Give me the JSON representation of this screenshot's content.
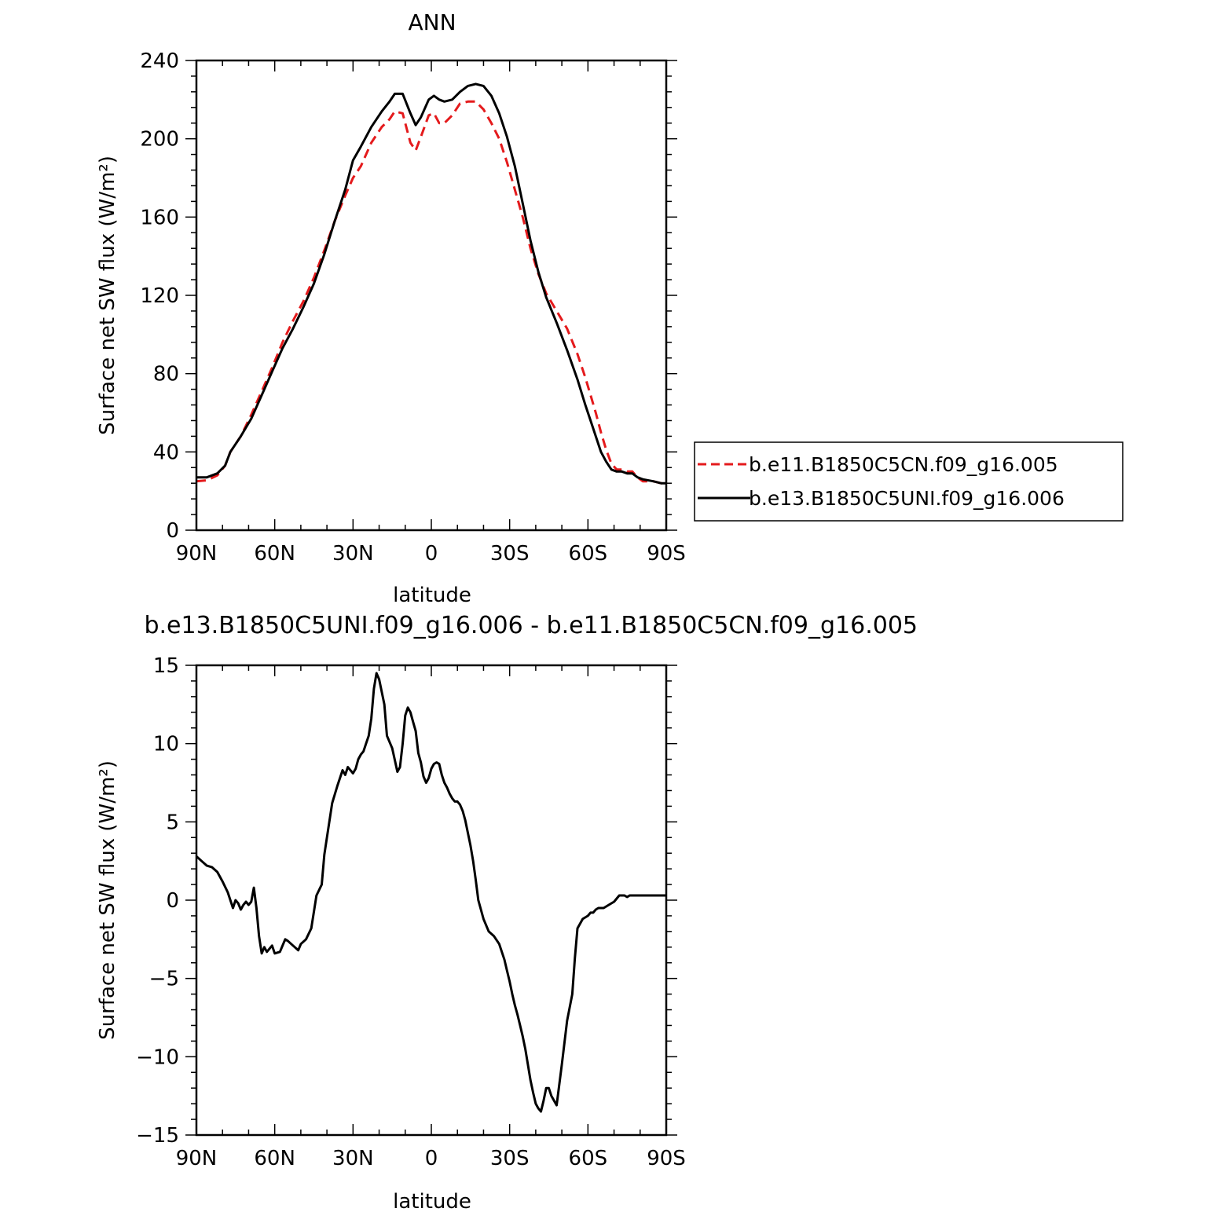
{
  "chart_data": [
    {
      "type": "line",
      "title": "ANN",
      "xlabel": "latitude",
      "ylabel": "Surface net SW flux (W/m²)",
      "xlim": [
        90,
        -90
      ],
      "ylim": [
        0,
        240
      ],
      "xticks": [
        90,
        60,
        30,
        0,
        -30,
        -60,
        -90
      ],
      "xtick_labels": [
        "90N",
        "60N",
        "30N",
        "0",
        "30S",
        "60S",
        "90S"
      ],
      "yticks": [
        0,
        40,
        80,
        120,
        160,
        200,
        240
      ],
      "ytick_labels": [
        "0",
        "40",
        "80",
        "120",
        "160",
        "200",
        "240"
      ],
      "legend_position": "right",
      "series": [
        {
          "name": "b.e11.B1850C5CN.f09_g16.005",
          "color": "#e41a1c",
          "dash": "dashed",
          "x": [
            90,
            86,
            82,
            79,
            77,
            73,
            69,
            65,
            61,
            57,
            53,
            49,
            45,
            41,
            37,
            33,
            30,
            27,
            23,
            19,
            16,
            14,
            11,
            8,
            6,
            4,
            1,
            -1,
            -3,
            -5,
            -8,
            -11,
            -14,
            -17,
            -20,
            -23,
            -26,
            -29,
            -32,
            -35,
            -38,
            -41,
            -44,
            -48,
            -52,
            -56,
            -59,
            -61,
            -63,
            -65,
            -67,
            -69,
            -71,
            -73,
            -75,
            -77,
            -79,
            -81,
            -85,
            -88,
            -90
          ],
          "y": [
            25,
            25.5,
            28,
            33,
            40,
            48,
            59,
            71,
            83,
            96,
            107,
            117,
            129,
            143,
            158,
            171,
            180,
            186,
            198,
            206,
            210,
            214,
            213,
            198,
            194,
            201,
            212,
            213,
            208,
            208,
            212,
            218,
            219,
            219,
            215,
            208,
            200,
            188,
            174,
            160,
            144,
            131,
            121,
            112,
            103,
            90,
            78,
            69,
            60,
            50,
            41,
            34,
            31,
            31,
            30,
            30,
            27,
            25,
            25,
            24,
            25
          ]
        },
        {
          "name": "b.e13.B1850C5UNI.f09_g16.006",
          "color": "#000000",
          "dash": "solid",
          "x": [
            90,
            86,
            82,
            79,
            77,
            73,
            69,
            65,
            61,
            57,
            53,
            49,
            45,
            41,
            37,
            33,
            30,
            27,
            23,
            19,
            16,
            14,
            11,
            8,
            6,
            4,
            1,
            -1,
            -3,
            -5,
            -8,
            -11,
            -14,
            -17,
            -20,
            -23,
            -26,
            -29,
            -32,
            -35,
            -38,
            -41,
            -44,
            -48,
            -52,
            -56,
            -59,
            -61,
            -63,
            -65,
            -67,
            -69,
            -71,
            -73,
            -75,
            -77,
            -79,
            -81,
            -85,
            -88,
            -90
          ],
          "y": [
            27,
            27,
            29,
            33,
            40,
            48,
            57,
            69,
            81,
            93,
            103,
            114,
            126,
            141,
            158,
            174,
            189,
            196,
            206,
            214,
            219,
            223,
            223,
            213,
            207,
            211,
            220,
            222,
            220,
            219,
            220,
            224,
            227,
            228,
            227,
            222,
            213,
            201,
            186,
            167,
            148,
            132,
            119,
            106,
            92,
            77,
            64,
            56,
            48,
            40,
            35,
            31,
            30,
            30,
            29,
            29,
            27,
            26,
            25,
            24,
            24
          ]
        }
      ]
    },
    {
      "type": "line",
      "title": "b.e13.B1850C5UNI.f09_g16.006 - b.e11.B1850C5CN.f09_g16.005",
      "xlabel": "latitude",
      "ylabel": "Surface net SW flux (W/m²)",
      "xlim": [
        90,
        -90
      ],
      "ylim": [
        -15,
        15
      ],
      "xticks": [
        90,
        60,
        30,
        0,
        -30,
        -60,
        -90
      ],
      "xtick_labels": [
        "90N",
        "60N",
        "30N",
        "0",
        "30S",
        "60S",
        "90S"
      ],
      "yticks": [
        -15,
        -10,
        -5,
        0,
        5,
        10,
        15
      ],
      "ytick_labels": [
        "−15",
        "−10",
        "−5",
        "0",
        "5",
        "10",
        "15"
      ],
      "series": [
        {
          "color": "#000000",
          "x": [
            90,
            88,
            86,
            84,
            82,
            80,
            78,
            76,
            75,
            74,
            73,
            72,
            71,
            70,
            69,
            68,
            67,
            66,
            65,
            64,
            63,
            62,
            61,
            60,
            58,
            56,
            55,
            53,
            51,
            50,
            48,
            46,
            44,
            42,
            41,
            40,
            38,
            36,
            34,
            33,
            32,
            31,
            30,
            29,
            28,
            27,
            26,
            25,
            24,
            23,
            22,
            21,
            20,
            18,
            17,
            15,
            13,
            12,
            11,
            10,
            9,
            8,
            7,
            6,
            5,
            4,
            3,
            2,
            1,
            0,
            -1,
            -2,
            -3,
            -4,
            -5,
            -6,
            -7,
            -8,
            -9,
            -10,
            -11,
            -12,
            -13,
            -14,
            -15,
            -16,
            -17,
            -18,
            -20,
            -22,
            -24,
            -26,
            -28,
            -29,
            -30,
            -31,
            -32,
            -33,
            -34,
            -35,
            -36,
            -37,
            -38,
            -39,
            -40,
            -41,
            -42,
            -43,
            -44,
            -45,
            -46,
            -48,
            -50,
            -52,
            -54,
            -55,
            -56,
            -58,
            -59,
            -60,
            -61,
            -62,
            -63,
            -64,
            -65,
            -66,
            -67,
            -68,
            -69,
            -70,
            -71,
            -72,
            -73,
            -74,
            -75,
            -76,
            -77,
            -78,
            -80,
            -82,
            -84,
            -86,
            -88,
            -90
          ],
          "y": [
            2.8,
            2.5,
            2.2,
            2.1,
            1.8,
            1.2,
            0.5,
            -0.5,
            0,
            -0.2,
            -0.6,
            -0.3,
            -0.1,
            -0.3,
            -0.1,
            0.8,
            -0.5,
            -2.3,
            -3.4,
            -3,
            -3.3,
            -3.1,
            -2.9,
            -3.4,
            -3.3,
            -2.5,
            -2.6,
            -2.9,
            -3.2,
            -2.8,
            -2.5,
            -1.8,
            0.3,
            1,
            2.9,
            4,
            6.2,
            7.3,
            8.3,
            8,
            8.5,
            8.3,
            8.1,
            8.4,
            9,
            9.3,
            9.5,
            10,
            10.5,
            11.6,
            13.5,
            14.5,
            14.1,
            12.5,
            10.5,
            9.7,
            8.2,
            8.5,
            10,
            11.8,
            12.3,
            12,
            11.4,
            10.8,
            9.4,
            8.8,
            7.9,
            7.5,
            7.8,
            8.4,
            8.7,
            8.8,
            8.7,
            8,
            7.5,
            7.2,
            6.8,
            6.5,
            6.3,
            6.3,
            6.1,
            5.7,
            5.1,
            4.3,
            3.5,
            2.5,
            1.3,
            0,
            -1.2,
            -2,
            -2.3,
            -2.8,
            -3.8,
            -4.5,
            -5.2,
            -6,
            -6.7,
            -7.3,
            -8,
            -8.7,
            -9.5,
            -10.5,
            -11.5,
            -12.3,
            -13,
            -13.3,
            -13.5,
            -12.8,
            -12,
            -12,
            -12.5,
            -13.1,
            -10.5,
            -7.7,
            -6,
            -3.7,
            -1.8,
            -1.2,
            -1.1,
            -1,
            -0.8,
            -0.8,
            -0.6,
            -0.5,
            -0.5,
            -0.5,
            -0.4,
            -0.3,
            -0.2,
            -0.1,
            0.1,
            0.3,
            0.3,
            0.3,
            0.2,
            0.3,
            0.3,
            0.3,
            0.3,
            0.3,
            0.3,
            0.3,
            0.3,
            0.3
          ]
        }
      ]
    }
  ]
}
